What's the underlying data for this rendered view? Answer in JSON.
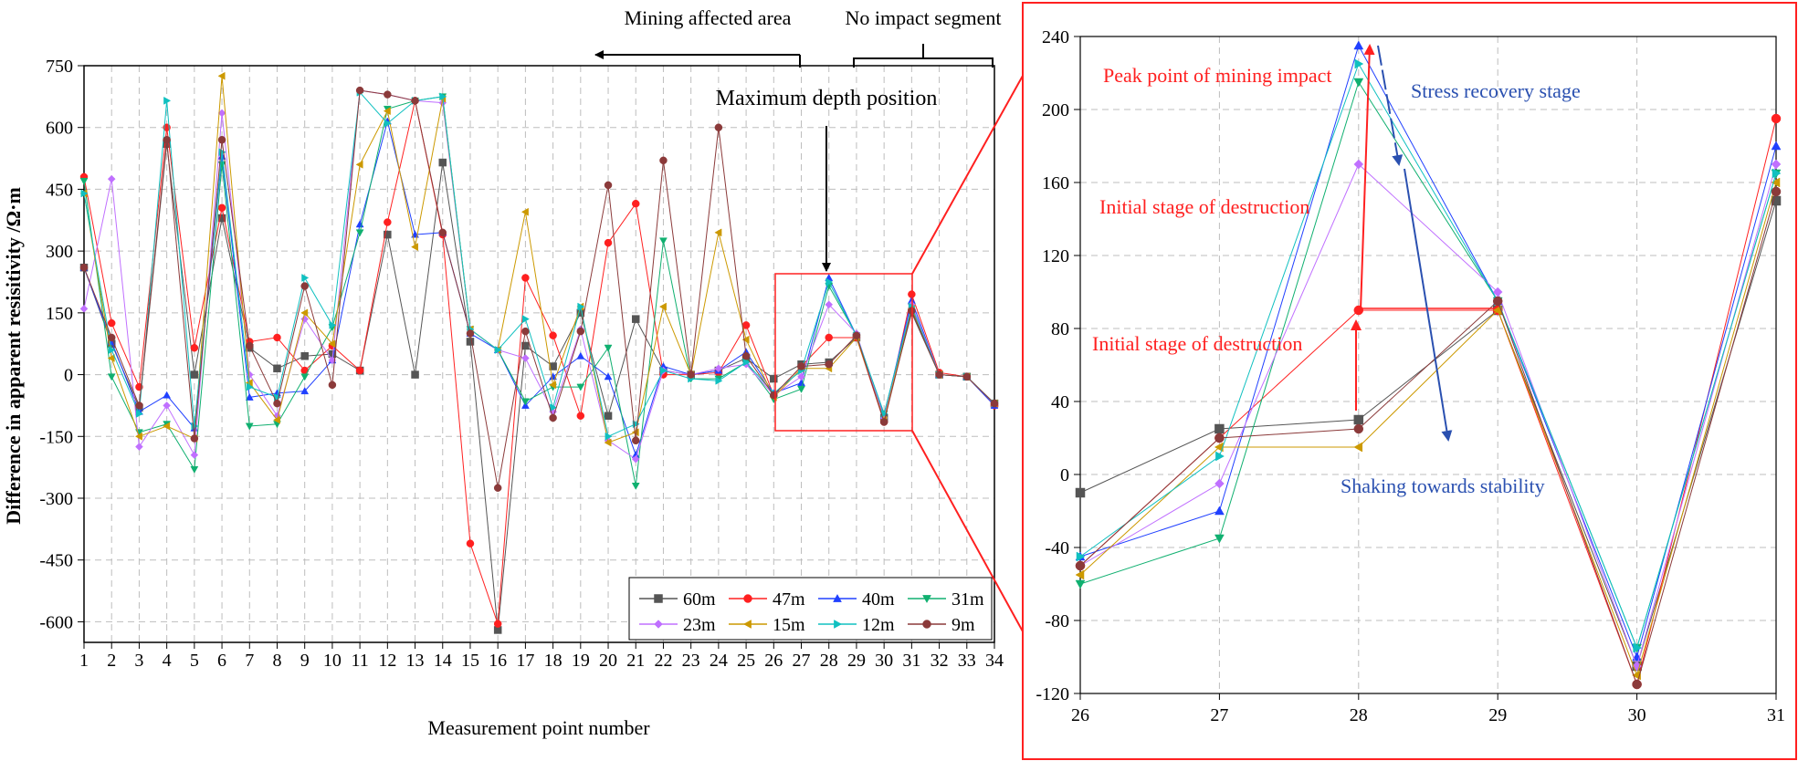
{
  "chart_data": [
    {
      "type": "line",
      "title": "",
      "xlabel": "Measurement point number",
      "ylabel": "Difference in apparent resisitivity /Ω·m",
      "xlim": [
        1,
        34
      ],
      "ylim": [
        -650,
        750
      ],
      "x": [
        1,
        2,
        3,
        4,
        5,
        6,
        7,
        8,
        9,
        10,
        11,
        12,
        13,
        14,
        15,
        16,
        17,
        18,
        19,
        20,
        21,
        22,
        23,
        24,
        25,
        26,
        27,
        28,
        29,
        30,
        31,
        32,
        33,
        34
      ],
      "yticks": [
        -600,
        -450,
        -300,
        -150,
        0,
        150,
        300,
        450,
        600,
        750
      ],
      "grid": true,
      "legend_position": "bottom-right",
      "series": [
        {
          "name": "60m",
          "color": "#555555",
          "marker": "square",
          "values": [
            260,
            75,
            -80,
            560,
            0,
            380,
            65,
            15,
            45,
            50,
            10,
            340,
            0,
            515,
            80,
            -620,
            70,
            20,
            150,
            -100,
            135,
            10,
            0,
            10,
            40,
            -10,
            25,
            30,
            90,
            -105,
            150,
            0,
            -5,
            -70
          ]
        },
        {
          "name": "47m",
          "color": "#ff2020",
          "marker": "circle",
          "values": [
            480,
            125,
            -30,
            600,
            65,
            405,
            80,
            90,
            10,
            70,
            10,
            370,
            665,
            340,
            -410,
            -605,
            235,
            95,
            -100,
            320,
            415,
            0,
            0,
            5,
            120,
            -50,
            20,
            90,
            90,
            -115,
            195,
            5,
            -5,
            -75
          ]
        },
        {
          "name": "40m",
          "color": "#2040ff",
          "marker": "triangle-up",
          "values": [
            260,
            80,
            -90,
            -50,
            -130,
            530,
            -55,
            -45,
            -40,
            35,
            365,
            615,
            340,
            345,
            100,
            60,
            -75,
            -5,
            45,
            -5,
            -195,
            20,
            0,
            10,
            55,
            -45,
            -20,
            235,
            95,
            -100,
            180,
            0,
            -5,
            -75
          ]
        },
        {
          "name": "31m",
          "color": "#10b070",
          "marker": "triangle-down",
          "values": [
            470,
            -5,
            -140,
            -120,
            -230,
            510,
            -125,
            -120,
            -5,
            115,
            345,
            645,
            665,
            675,
            110,
            60,
            -65,
            -30,
            -30,
            65,
            -270,
            325,
            -10,
            -10,
            30,
            -60,
            -35,
            215,
            95,
            -95,
            165,
            0,
            -5,
            -70
          ]
        },
        {
          "name": "23m",
          "color": "#c070ff",
          "marker": "diamond",
          "values": [
            160,
            475,
            -175,
            -75,
            -195,
            635,
            0,
            -100,
            135,
            35,
            690,
            680,
            665,
            660,
            110,
            60,
            40,
            -90,
            110,
            -160,
            -205,
            10,
            0,
            15,
            25,
            -50,
            -5,
            170,
            100,
            -105,
            170,
            0,
            -5,
            -70
          ]
        },
        {
          "name": "15m",
          "color": "#cc9900",
          "marker": "triangle-left",
          "values": [
            440,
            40,
            -150,
            -125,
            -155,
            725,
            -20,
            -110,
            150,
            75,
            510,
            640,
            310,
            670,
            110,
            60,
            395,
            -25,
            165,
            -165,
            -140,
            165,
            0,
            345,
            85,
            -55,
            15,
            15,
            90,
            -110,
            160,
            0,
            -5,
            -70
          ]
        },
        {
          "name": "12m",
          "color": "#10c0c0",
          "marker": "triangle-right",
          "values": [
            440,
            60,
            -95,
            665,
            -125,
            540,
            -30,
            -55,
            235,
            120,
            685,
            610,
            665,
            675,
            110,
            60,
            135,
            -80,
            165,
            -150,
            -120,
            10,
            -10,
            -15,
            30,
            -45,
            10,
            225,
            95,
            -95,
            165,
            0,
            -5,
            -70
          ]
        },
        {
          "name": "9m",
          "color": "#8b3a3a",
          "marker": "circle",
          "values": [
            260,
            90,
            -75,
            570,
            -155,
            570,
            70,
            -70,
            215,
            -25,
            690,
            680,
            665,
            345,
            100,
            -275,
            105,
            -105,
            105,
            460,
            -160,
            520,
            0,
            600,
            45,
            -50,
            20,
            25,
            95,
            -115,
            155,
            0,
            -5,
            -70
          ]
        }
      ],
      "annotations": {
        "mining_affected": "Mining affected area",
        "no_impact": "No impact segment",
        "max_depth": "Maximum depth position"
      }
    },
    {
      "type": "line",
      "title": "",
      "xlim": [
        26,
        31
      ],
      "ylim": [
        -120,
        240
      ],
      "x": [
        26,
        27,
        28,
        29,
        30,
        31
      ],
      "yticks": [
        -120,
        -80,
        -40,
        0,
        40,
        80,
        120,
        160,
        200,
        240
      ],
      "grid": true,
      "series": [
        {
          "name": "60m",
          "color": "#555555",
          "marker": "square",
          "values": [
            -10,
            25,
            30,
            90,
            -105,
            150
          ]
        },
        {
          "name": "47m",
          "color": "#ff2020",
          "marker": "circle",
          "values": [
            -50,
            20,
            90,
            90,
            -115,
            195
          ]
        },
        {
          "name": "40m",
          "color": "#2040ff",
          "marker": "triangle-up",
          "values": [
            -45,
            -20,
            235,
            95,
            -100,
            180
          ]
        },
        {
          "name": "31m",
          "color": "#10b070",
          "marker": "triangle-down",
          "values": [
            -60,
            -35,
            215,
            95,
            -95,
            165
          ]
        },
        {
          "name": "23m",
          "color": "#c070ff",
          "marker": "diamond",
          "values": [
            -50,
            -5,
            170,
            100,
            -105,
            170
          ]
        },
        {
          "name": "15m",
          "color": "#cc9900",
          "marker": "triangle-left",
          "values": [
            -55,
            15,
            15,
            90,
            -110,
            160
          ]
        },
        {
          "name": "12m",
          "color": "#10c0c0",
          "marker": "triangle-right",
          "values": [
            -45,
            10,
            225,
            95,
            -95,
            165
          ]
        },
        {
          "name": "9m",
          "color": "#8b3a3a",
          "marker": "circle",
          "values": [
            -50,
            20,
            25,
            95,
            -115,
            155
          ]
        }
      ],
      "annotations": {
        "peak": "Peak point of mining impact",
        "stress_recovery": "Stress recovery stage",
        "initial_upper": "Initial stage of destruction",
        "initial_lower": "Initial stage of destruction",
        "shaking": "Shaking towards stability"
      }
    }
  ]
}
